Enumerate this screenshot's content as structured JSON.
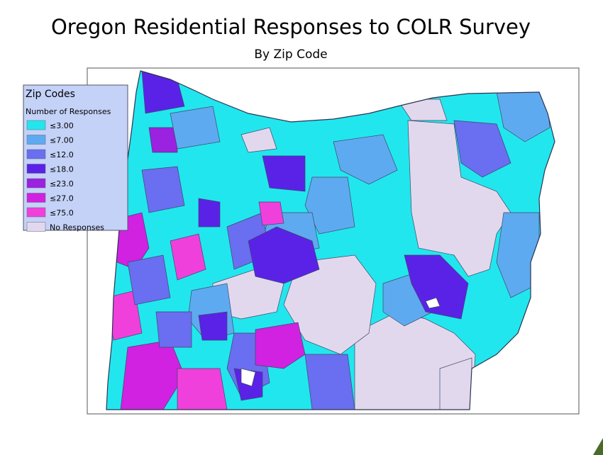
{
  "header": {
    "title": "Oregon Residential Responses to COLR Survey",
    "subtitle": "By Zip Code"
  },
  "legend": {
    "title": "Zip Codes",
    "subtitle": "Number of Responses",
    "items": [
      {
        "label": "≤3.00",
        "color": "#22e6ee"
      },
      {
        "label": "≤7.00",
        "color": "#5eaaf0"
      },
      {
        "label": "≤12.0",
        "color": "#6a6ef0"
      },
      {
        "label": "≤18.0",
        "color": "#5a22e6"
      },
      {
        "label": "≤23.0",
        "color": "#9a22e0"
      },
      {
        "label": "≤27.0",
        "color": "#d022e0"
      },
      {
        "label": "≤75.0",
        "color": "#f040dc"
      },
      {
        "label": "No Responses",
        "color": "#e2d8ee"
      }
    ]
  }
}
